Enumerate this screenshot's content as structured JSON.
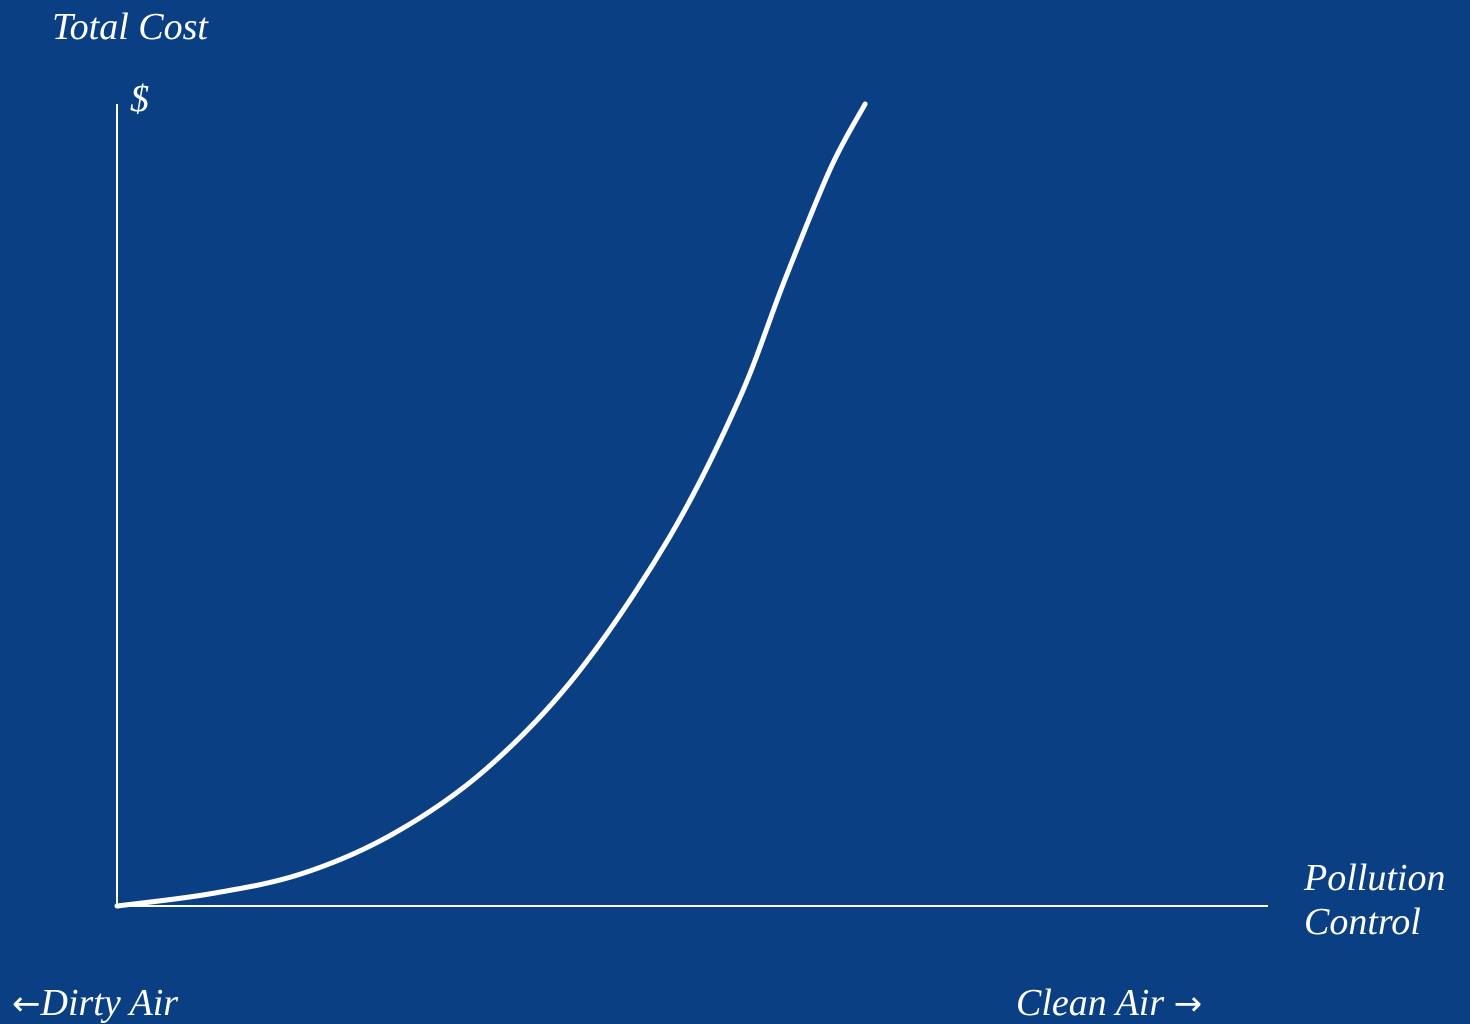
{
  "colors": {
    "background": "#0a4083",
    "foreground": "#ffffff"
  },
  "chart_data": {
    "type": "line",
    "title": "Total Cost",
    "ylabel": "$",
    "xlabel": "Pollution Control",
    "x_left_label": "Dirty Air",
    "x_right_label": "Clean Air",
    "grid": false,
    "legend": "none",
    "xlim": [
      0,
      100
    ],
    "ylim": [
      0,
      100
    ],
    "series": [
      {
        "x": [
          0,
          8,
          16,
          24,
          32,
          40,
          48,
          54,
          58,
          62,
          65
        ],
        "y": [
          0,
          1.5,
          4,
          9,
          17,
          29,
          46,
          63,
          78,
          92,
          100
        ]
      }
    ]
  }
}
